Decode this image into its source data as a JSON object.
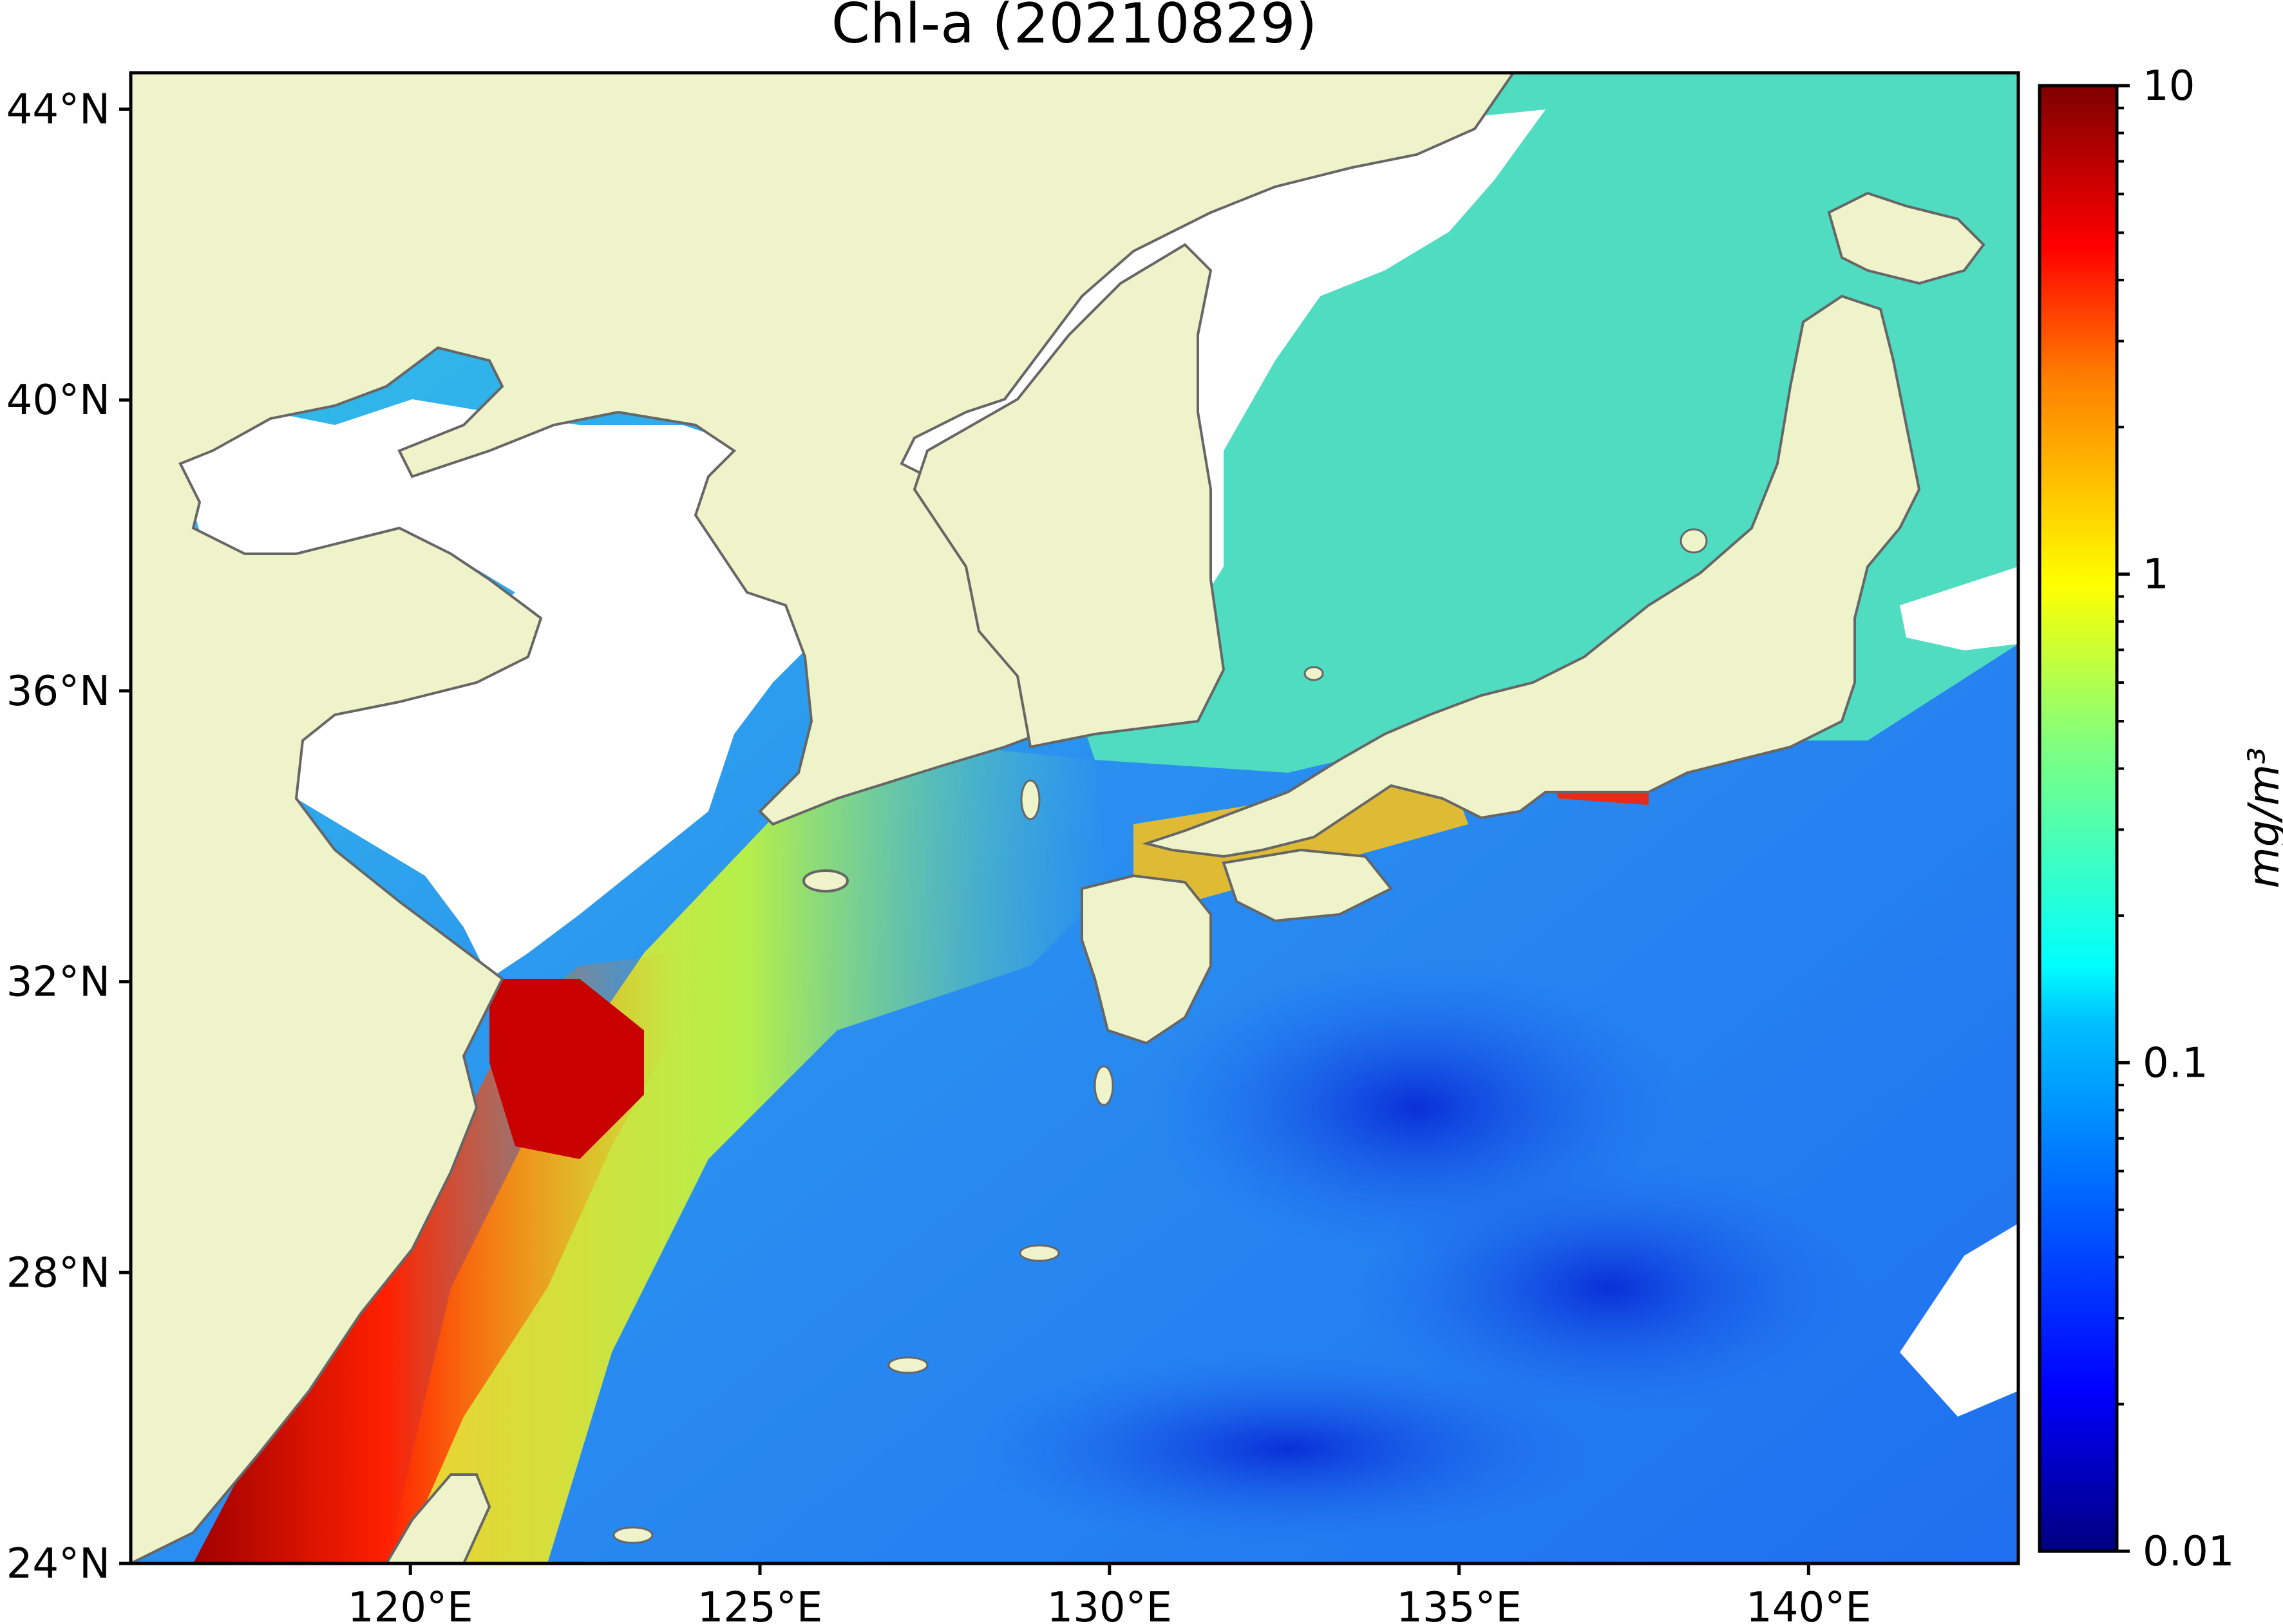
{
  "title": "Chl-a (20210829)",
  "map": {
    "lon_range": [
      116.0,
      143.0
    ],
    "lat_range": [
      24.0,
      44.5
    ],
    "x_ticks": [
      {
        "value": 120,
        "label": "120°E"
      },
      {
        "value": 125,
        "label": "125°E"
      },
      {
        "value": 130,
        "label": "130°E"
      },
      {
        "value": 135,
        "label": "135°E"
      },
      {
        "value": 140,
        "label": "140°E"
      }
    ],
    "y_ticks": [
      {
        "value": 44,
        "label": "44°N"
      },
      {
        "value": 40,
        "label": "40°N"
      },
      {
        "value": 36,
        "label": "36°N"
      },
      {
        "value": 32,
        "label": "32°N"
      },
      {
        "value": 28,
        "label": "28°N"
      },
      {
        "value": 24,
        "label": "24°N"
      }
    ],
    "colors": {
      "land": "#eff3ca",
      "coastline": "#666666",
      "no_data": "#ffffff"
    }
  },
  "colorbar": {
    "label": "mg/m³",
    "scale": "log",
    "range": [
      0.01,
      10
    ],
    "ticks": [
      {
        "value": 10,
        "label": "10"
      },
      {
        "value": 1,
        "label": "1"
      },
      {
        "value": 0.1,
        "label": "0.1"
      },
      {
        "value": 0.01,
        "label": "0.01"
      }
    ],
    "colormap": "jet",
    "colormap_stops": [
      "#00007f",
      "#0000ff",
      "#007fff",
      "#00ffff",
      "#7fff7f",
      "#ffff00",
      "#ff7f00",
      "#ff0000",
      "#7f0000"
    ]
  }
}
